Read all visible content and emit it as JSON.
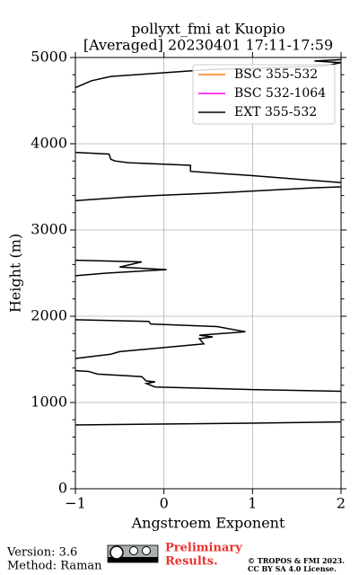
{
  "chart_data": {
    "type": "line",
    "orientation": "vertical",
    "title": [
      "pollyxt_fmi at Kuopio",
      "[Averaged] 20230401 17:11-17:59"
    ],
    "xlabel": "Angstroem Exponent",
    "ylabel": "Height (m)",
    "xlim": [
      -1,
      2
    ],
    "xticks": [
      {
        "value": -1,
        "label": "−1"
      },
      0,
      1,
      2
    ],
    "ylim": [
      0,
      5000
    ],
    "yticks": [
      0,
      1000,
      2000,
      3000,
      4000,
      5000
    ],
    "yminorticks": [
      200,
      400,
      600,
      800,
      1200,
      1400,
      1600,
      1800,
      2200,
      2400,
      2600,
      2800,
      3200,
      3400,
      3600,
      3800,
      4200,
      4400,
      4600,
      4800
    ],
    "grid": true,
    "legend": "upper right",
    "heights": [
      4975,
      4960,
      4940,
      4900,
      4860,
      4780,
      4730,
      4650,
      4630,
      3900,
      3880,
      3820,
      3800,
      3780,
      3750,
      3680,
      3630,
      3550,
      3530,
      3500,
      3490,
      3430,
      3400,
      3380,
      3340,
      3320,
      2650,
      2630,
      2570,
      2540,
      2500,
      2470,
      2450,
      1960,
      1940,
      1910,
      1880,
      1820,
      1780,
      1760,
      1740,
      1680,
      1590,
      1560,
      1510,
      1490,
      1370,
      1360,
      1330,
      1300,
      1250,
      1240,
      1220,
      1180,
      1150,
      1130,
      1110,
      775,
      760,
      740
    ],
    "series": [
      {
        "name": "BSC 355-532",
        "color": "#ff7f0e",
        "values": [
          null,
          null,
          null,
          null,
          null,
          null,
          null,
          null,
          null,
          null,
          null,
          null,
          null,
          null,
          null,
          null,
          null,
          null,
          null,
          null,
          null,
          null,
          null,
          null,
          null,
          null,
          null,
          null,
          null,
          null,
          null,
          null,
          null,
          null,
          null,
          null,
          null,
          null,
          null,
          null,
          null,
          null,
          null,
          null,
          null,
          null,
          null,
          null,
          null,
          null,
          null,
          null,
          null,
          null,
          null,
          null,
          null,
          null,
          null,
          null
        ]
      },
      {
        "name": "BSC 532-1064",
        "color": "#ff00ff",
        "values": [
          null,
          null,
          null,
          null,
          null,
          null,
          null,
          null,
          null,
          null,
          null,
          null,
          null,
          null,
          null,
          null,
          null,
          null,
          null,
          null,
          null,
          null,
          null,
          null,
          null,
          null,
          null,
          null,
          null,
          null,
          null,
          null,
          null,
          null,
          null,
          null,
          null,
          null,
          null,
          null,
          null,
          null,
          null,
          null,
          null,
          null,
          null,
          null,
          null,
          null,
          null,
          null,
          null,
          null,
          null,
          null,
          null,
          null,
          null,
          null
        ]
      },
      {
        "name": "EXT 355-532",
        "color": "#000000",
        "values": [
          2.0,
          1.7,
          2.0,
          1.8,
          0.5,
          -0.6,
          -0.82,
          -1.0,
          null,
          -1.0,
          -0.62,
          -0.6,
          -0.55,
          -0.4,
          0.3,
          0.3,
          1.0,
          2.0,
          null,
          2.0,
          1.7,
          0.6,
          -0.1,
          -0.45,
          -1.0,
          null,
          -1.0,
          -0.25,
          -0.5,
          0.03,
          -0.65,
          -1.0,
          null,
          -1.0,
          -0.17,
          -0.15,
          0.6,
          0.92,
          0.4,
          0.55,
          0.4,
          0.45,
          -0.5,
          -0.6,
          -1.0,
          null,
          -1.0,
          -0.85,
          -0.75,
          -0.25,
          -0.2,
          -0.1,
          -0.2,
          -0.1,
          1.0,
          2.0,
          null,
          2.0,
          1.0,
          -1.0
        ]
      }
    ]
  },
  "footer": {
    "version": "Version: 3.6",
    "method": "Method: Raman",
    "preliminary": [
      "Preliminary",
      "Results."
    ],
    "copyright": [
      "© TROPOS & FMI 2023.",
      "CC BY SA 4.0 License."
    ]
  }
}
